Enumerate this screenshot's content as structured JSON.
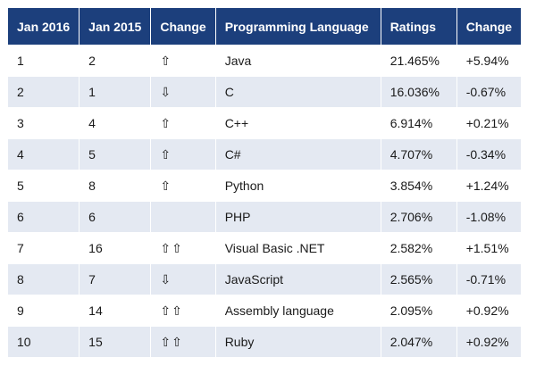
{
  "table": {
    "headers": [
      "Jan 2016",
      "Jan 2015",
      "Change",
      "Programming Language",
      "Ratings",
      "Change"
    ],
    "rows": [
      {
        "jan2016": "1",
        "jan2015": "2",
        "arrow": "⇧",
        "arrow_icon": "up-arrow-icon",
        "language": "Java",
        "rating": "21.465%",
        "change": "+5.94%"
      },
      {
        "jan2016": "2",
        "jan2015": "1",
        "arrow": "⇩",
        "arrow_icon": "down-arrow-icon",
        "language": "C",
        "rating": "16.036%",
        "change": "-0.67%"
      },
      {
        "jan2016": "3",
        "jan2015": "4",
        "arrow": "⇧",
        "arrow_icon": "up-arrow-icon",
        "language": "C++",
        "rating": "6.914%",
        "change": "+0.21%"
      },
      {
        "jan2016": "4",
        "jan2015": "5",
        "arrow": "⇧",
        "arrow_icon": "up-arrow-icon",
        "language": "C#",
        "rating": "4.707%",
        "change": "-0.34%"
      },
      {
        "jan2016": "5",
        "jan2015": "8",
        "arrow": "⇧",
        "arrow_icon": "up-arrow-icon",
        "language": "Python",
        "rating": "3.854%",
        "change": "+1.24%"
      },
      {
        "jan2016": "6",
        "jan2015": "6",
        "arrow": "",
        "arrow_icon": "",
        "language": "PHP",
        "rating": "2.706%",
        "change": "-1.08%"
      },
      {
        "jan2016": "7",
        "jan2015": "16",
        "arrow": "⇧⇧",
        "arrow_icon": "double-up-arrow-icon",
        "language": "Visual Basic .NET",
        "rating": "2.582%",
        "change": "+1.51%"
      },
      {
        "jan2016": "8",
        "jan2015": "7",
        "arrow": "⇩",
        "arrow_icon": "down-arrow-icon",
        "language": "JavaScript",
        "rating": "2.565%",
        "change": "-0.71%"
      },
      {
        "jan2016": "9",
        "jan2015": "14",
        "arrow": "⇧⇧",
        "arrow_icon": "double-up-arrow-icon",
        "language": "Assembly language",
        "rating": "2.095%",
        "change": "+0.92%"
      },
      {
        "jan2016": "10",
        "jan2015": "15",
        "arrow": "⇧⇧",
        "arrow_icon": "double-up-arrow-icon",
        "language": "Ruby",
        "rating": "2.047%",
        "change": "+0.92%"
      }
    ]
  },
  "colors": {
    "header_bg": "#1c3f7c",
    "header_text": "#ffffff",
    "row_alt_bg": "#e4e9f2",
    "arrow": "#9a9a9a"
  }
}
